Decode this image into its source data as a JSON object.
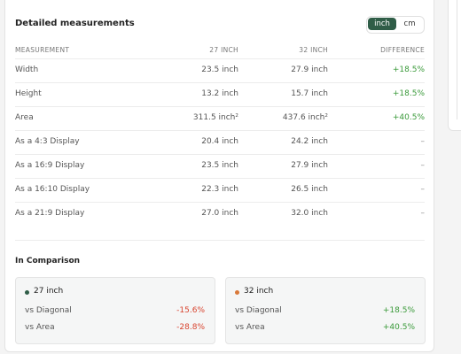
{
  "header": {
    "title": "Detailed measurements",
    "units": [
      "inch",
      "cm"
    ]
  },
  "table": {
    "columns": [
      "MEASUREMENT",
      "27 INCH",
      "32 INCH",
      "DIFFERENCE"
    ],
    "rows": [
      [
        "Width",
        "23.5 inch",
        "27.9 inch",
        "+18.5%"
      ],
      [
        "Height",
        "13.2 inch",
        "15.7 inch",
        "+18.5%"
      ],
      [
        "Area",
        "311.5 inch²",
        "437.6 inch²",
        "+40.5%"
      ],
      [
        "As a 4:3 Display",
        "20.4 inch",
        "24.2 inch",
        "–"
      ],
      [
        "As a 16:9 Display",
        "23.5 inch",
        "27.9 inch",
        "–"
      ],
      [
        "As a 16:10 Display",
        "22.3 inch",
        "26.5 inch",
        "–"
      ],
      [
        "As a 21:9 Display",
        "27.0 inch",
        "32.0 inch",
        "–"
      ]
    ]
  },
  "comparison": {
    "title": "In Comparison",
    "cards": [
      {
        "label": "27 inch",
        "rows": [
          [
            "vs Diagonal",
            "-15.6%"
          ],
          [
            "vs Area",
            "-28.8%"
          ]
        ]
      },
      {
        "label": "32 inch",
        "rows": [
          [
            "vs Diagonal",
            "+18.5%"
          ],
          [
            "vs Area",
            "+40.5%"
          ]
        ]
      }
    ]
  }
}
